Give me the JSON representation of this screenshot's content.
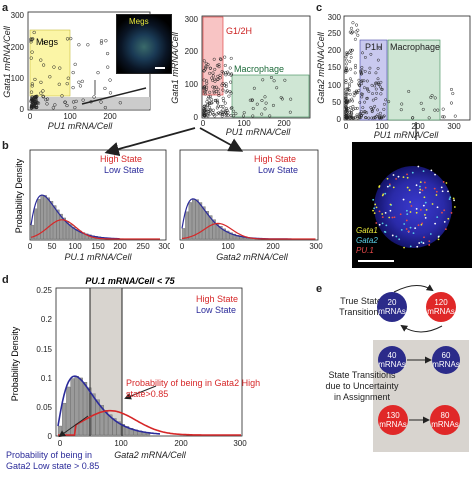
{
  "panels": {
    "a": {
      "label": "a",
      "plot1": {
        "ylabel": "Gata1 mRNA/Cell",
        "xlabel": "PU1 mRNA/Cell",
        "region": "Megs",
        "inset_label": "Megs",
        "yticks": [
          "0",
          "100",
          "200",
          "300"
        ],
        "xticks": [
          "0",
          "100",
          "200"
        ]
      },
      "plot2": {
        "ylabel": "Gata1 mRNA/Cell",
        "xlabel": "PU1 mRNA/Cell",
        "region1": "G1/2H",
        "region2": "Macrophage",
        "yticks": [
          "0",
          "100",
          "200",
          "300"
        ],
        "xticks": [
          "0",
          "100",
          "200"
        ]
      }
    },
    "c": {
      "label": "c",
      "ylabel": "Gata2 mRNA/Cell",
      "xlabel": "PU1 mRNA/Cell",
      "region1": "P1H",
      "region2": "Macrophage",
      "yticks": [
        "0",
        "50",
        "100",
        "150",
        "200",
        "250",
        "300"
      ],
      "xticks": [
        "0",
        "100",
        "200",
        "300"
      ],
      "legend": [
        "Gata1",
        "Gata2",
        "PU.1"
      ]
    },
    "b": {
      "label": "b",
      "plot1": {
        "ylabel": "Probability Density",
        "xlabel": "PU.1 mRNA/Cell",
        "legend_high": "High State",
        "legend_low": "Low State",
        "xticks": [
          "0",
          "50",
          "100",
          "150",
          "200",
          "250",
          "300"
        ]
      },
      "plot2": {
        "xlabel": "Gata2 mRNA/Cell",
        "legend_high": "High State",
        "legend_low": "Low State",
        "xticks": [
          "0",
          "100",
          "200",
          "300"
        ]
      }
    },
    "d": {
      "label": "d",
      "title": "PU.1 mRNA/Cell < 75",
      "ylabel": "Probability Density",
      "xlabel": "Gata2 mRNA/Cell",
      "legend_high": "High State",
      "legend_low": "Low State",
      "yticks": [
        "0",
        "0.05",
        "0.1",
        "0.15",
        "0.2",
        "0.25"
      ],
      "xticks": [
        "0",
        "100",
        "200",
        "300"
      ],
      "annot_high": "Probability of being in Gata2 High state>0.85",
      "annot_low": "Probability of being in Gata2 Low state > 0.85"
    },
    "e": {
      "label": "e",
      "true_title": "True State Transitions",
      "unc_title": "State Transitions due to Uncertainty in Assignment",
      "circles": [
        "20 mRNAs",
        "120 mRNAs",
        "40 mRNAs",
        "60 mRNAs",
        "130 mRNAs",
        "80 mRNAs"
      ]
    }
  },
  "colors": {
    "high": "#d62728",
    "low": "#2b2b9a",
    "region_yellow": "#fbf5a6",
    "region_red": "#f8c4c4",
    "region_green": "#cfe6d4",
    "region_blue": "#c9c9ef",
    "bar": "#9a9a9a"
  }
}
